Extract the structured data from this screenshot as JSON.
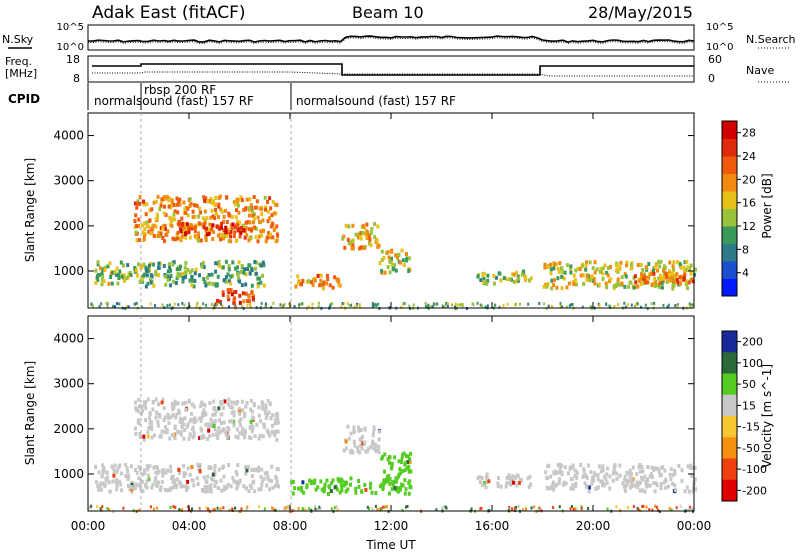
{
  "header": {
    "title": "Adak East (fitACF)",
    "beam": "Beam 10",
    "date": "28/May/2015"
  },
  "sky_panel": {
    "left_label": "N.Sky",
    "right_label": "N.Search",
    "left_ticks": [
      "10^5",
      "10^0"
    ],
    "right_ticks": [
      "10^5",
      "10^0"
    ]
  },
  "freq_panel": {
    "left_label_1": "Freq.",
    "left_label_2": "[MHz]",
    "right_label": "Nave",
    "left_ticks": [
      "18",
      "8"
    ],
    "right_ticks": [
      "60",
      "0"
    ]
  },
  "cpid": {
    "label": "CPID",
    "modes": [
      "normalsound (fast) 157 RF",
      "rbsp 200 RF",
      "normalsound (fast) 157 RF"
    ]
  },
  "chart_data": [
    {
      "type": "heatmap",
      "name": "power-panel",
      "ylabel": "Slant Range [km]",
      "xlabel": "",
      "x_ticks": [
        "00:00",
        "04:00",
        "08:00",
        "12:00",
        "16:00",
        "20:00",
        "00:00"
      ],
      "y_ticks": [
        1000,
        2000,
        3000,
        4000
      ],
      "xlim_hours": [
        0,
        24
      ],
      "ylim_km": [
        180,
        4500
      ],
      "colorbar": {
        "label": "Power [dB]",
        "ticks": [
          4,
          8,
          12,
          16,
          20,
          24,
          28
        ],
        "range": [
          0,
          30
        ],
        "colors": [
          "#0018ff",
          "#1a4fd0",
          "#2d7a8a",
          "#3a9a5a",
          "#9ac23a",
          "#e8c21a",
          "#f28a10",
          "#ef5a0c",
          "#e02a0c",
          "#d10000"
        ]
      },
      "echo_regions": [
        {
          "t0": 0.2,
          "t1": 2.0,
          "r0": 750,
          "r1": 1250,
          "level": 12
        },
        {
          "t0": 1.8,
          "t1": 7.5,
          "r0": 1700,
          "r1": 2700,
          "level": 18
        },
        {
          "t0": 3.5,
          "t1": 6.5,
          "r0": 1850,
          "r1": 2100,
          "level": 24
        },
        {
          "t0": 2.0,
          "t1": 7.0,
          "r0": 700,
          "r1": 1250,
          "level": 10
        },
        {
          "t0": 5.0,
          "t1": 6.5,
          "r0": 300,
          "r1": 650,
          "level": 22
        },
        {
          "t0": 8.0,
          "t1": 10.0,
          "r0": 650,
          "r1": 950,
          "level": 18
        },
        {
          "t0": 10.0,
          "t1": 11.5,
          "r0": 1500,
          "r1": 2100,
          "level": 16
        },
        {
          "t0": 11.5,
          "t1": 12.8,
          "r0": 1000,
          "r1": 1500,
          "level": 14
        },
        {
          "t0": 15.3,
          "t1": 17.5,
          "r0": 750,
          "r1": 1050,
          "level": 12
        },
        {
          "t0": 18.0,
          "t1": 24.0,
          "r0": 650,
          "r1": 1250,
          "level": 14
        },
        {
          "t0": 21.5,
          "t1": 24.0,
          "r0": 750,
          "r1": 1000,
          "level": 20
        }
      ]
    },
    {
      "type": "heatmap",
      "name": "velocity-panel",
      "ylabel": "Slant Range [km]",
      "xlabel": "Time UT",
      "x_ticks": [
        "00:00",
        "04:00",
        "08:00",
        "12:00",
        "16:00",
        "20:00",
        "00:00"
      ],
      "y_ticks": [
        1000,
        2000,
        3000,
        4000
      ],
      "xlim_hours": [
        0,
        24
      ],
      "ylim_km": [
        180,
        4500
      ],
      "colorbar": {
        "label": "Velocity [m s^-1]",
        "ticks": [
          200,
          100,
          50,
          15,
          -15,
          -50,
          -100,
          -200
        ],
        "colors": [
          "#1a2a9a",
          "#2a6a3a",
          "#55cc22",
          "#c8c8c8",
          "#f5c830",
          "#f59010",
          "#f04010",
          "#e00000"
        ]
      },
      "echo_regions": [
        {
          "t0": 0.2,
          "t1": 7.5,
          "r0": 650,
          "r1": 1250,
          "vel": 0
        },
        {
          "t0": 1.8,
          "t1": 7.5,
          "r0": 1800,
          "r1": 2700,
          "vel": 0
        },
        {
          "t0": 8.0,
          "t1": 12.8,
          "r0": 600,
          "r1": 950,
          "vel": 60
        },
        {
          "t0": 11.5,
          "t1": 12.8,
          "r0": 900,
          "r1": 1500,
          "vel": 60
        },
        {
          "t0": 10.0,
          "t1": 11.5,
          "r0": 1500,
          "r1": 2100,
          "vel": 0
        },
        {
          "t0": 15.3,
          "t1": 17.5,
          "r0": 750,
          "r1": 1050,
          "vel": 0
        },
        {
          "t0": 18.0,
          "t1": 24.0,
          "r0": 650,
          "r1": 1250,
          "vel": 0
        }
      ]
    }
  ]
}
